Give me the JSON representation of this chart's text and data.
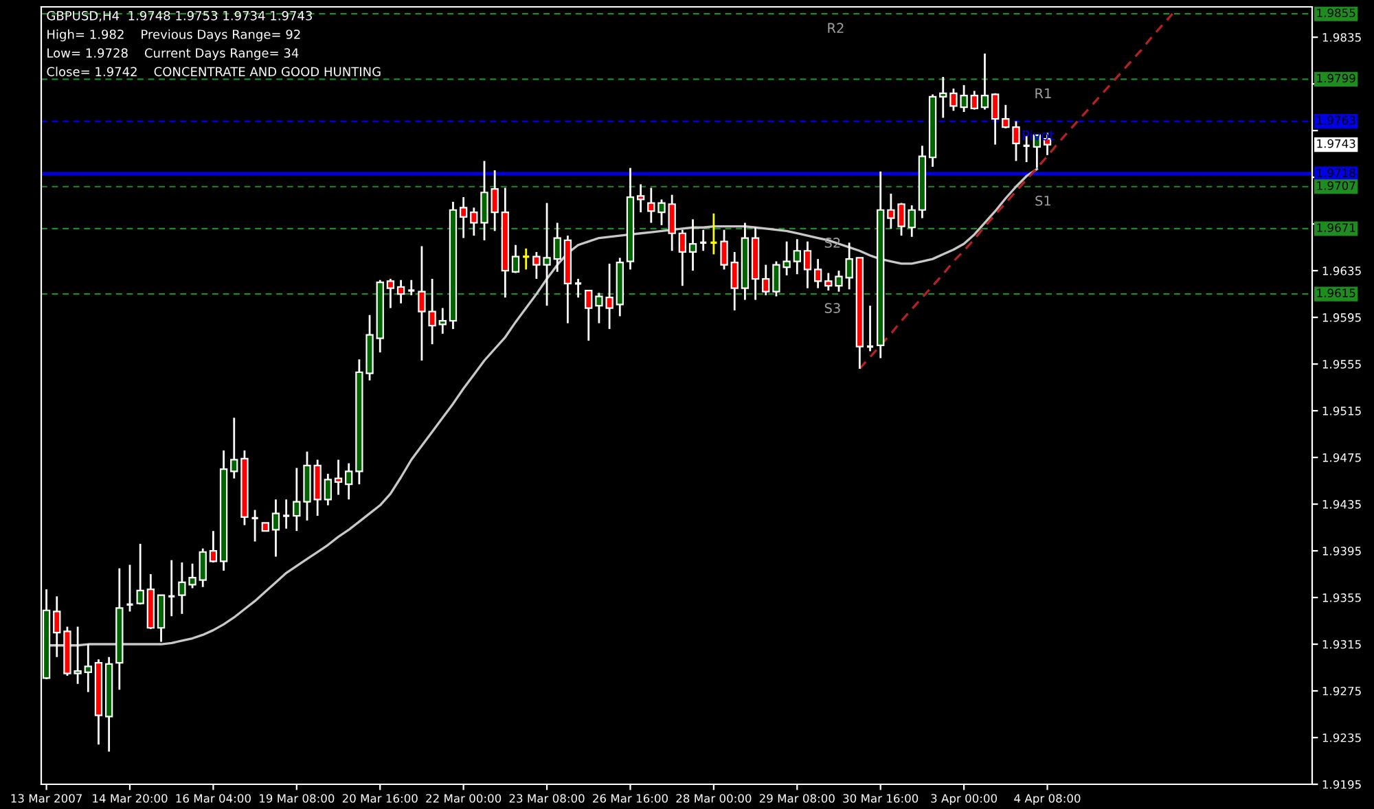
{
  "chart_data": {
    "type": "candlestick",
    "annotations": [
      "GBPUSD,H4  1.9748 1.9753 1.9734 1.9743",
      "High= 1.982    Previous Days Range= 92",
      "Low= 1.9728    Current Days Range= 34",
      "Close= 1.9742    CONCENTRATE AND GOOD HUNTING",
      {
        "text": "1.9855",
        "y": 1.9855
      },
      {
        "text": "1.9799",
        "y": 1.9799
      },
      {
        "text": "1.9763",
        "y": 1.9763
      },
      {
        "text": "1.9743",
        "y": 1.9743
      },
      {
        "text": "1.9718",
        "y": 1.9718
      },
      {
        "text": "1.9707",
        "y": 1.9707
      },
      {
        "text": "1.9671",
        "y": 1.9671
      },
      {
        "text": "1.9615",
        "y": 1.9615
      }
    ],
    "categories": [
      "13 Mar 2007",
      null,
      null,
      null,
      null,
      null,
      null,
      null,
      "14 Mar 20:00",
      null,
      null,
      null,
      null,
      null,
      null,
      null,
      "16 Mar 04:00",
      null,
      null,
      null,
      null,
      null,
      null,
      null,
      "19 Mar 08:00",
      null,
      null,
      null,
      null,
      null,
      null,
      null,
      "20 Mar 16:00",
      null,
      null,
      null,
      null,
      null,
      null,
      null,
      "22 Mar 00:00",
      null,
      null,
      null,
      null,
      null,
      null,
      null,
      "23 Mar 08:00",
      null,
      null,
      null,
      null,
      null,
      null,
      null,
      "26 Mar 16:00",
      null,
      null,
      null,
      null,
      null,
      null,
      null,
      "28 Mar 00:00",
      null,
      null,
      null,
      null,
      null,
      null,
      null,
      "29 Mar 08:00",
      null,
      null,
      null,
      null,
      null,
      null,
      null,
      "30 Mar 16:00",
      null,
      null,
      null,
      null,
      null,
      null,
      null,
      "3 Apr 00:00",
      null,
      null,
      null,
      null,
      null,
      null,
      null,
      "4 Apr 08:00",
      null,
      null,
      null,
      null,
      null,
      null,
      null,
      null,
      null,
      null,
      null,
      null,
      null,
      null,
      null,
      null,
      null,
      null,
      null,
      null,
      null,
      null,
      null,
      null,
      null
    ],
    "ylim": [
      1.9195,
      1.9861
    ],
    "yticks": [
      1.9195,
      1.9235,
      1.9275,
      1.9315,
      1.9355,
      1.9395,
      1.9435,
      1.9475,
      1.9515,
      1.9555,
      1.9595,
      1.9635,
      {
        "value": 1.9675,
        "label": null
      },
      {
        "value": 1.9715,
        "label": null
      },
      {
        "value": 1.9755,
        "label": null
      },
      {
        "value": 1.9795,
        "label": null
      },
      1.9835
    ],
    "ref_lines": [
      {
        "axis": "y",
        "value": 1.9855,
        "label": "R2",
        "color": "#1e8c1e",
        "line_style": "dashed"
      },
      {
        "axis": "y",
        "value": 1.9799,
        "label": "R1",
        "color": "#1e8c1e",
        "line_style": "dashed"
      },
      {
        "axis": "y",
        "value": 1.9763,
        "label": "Pivot",
        "color": "#0000e6",
        "line_style": "dashed"
      },
      {
        "axis": "y",
        "value": 1.9718,
        "color": "#0000e6",
        "line_style": "solid"
      },
      {
        "axis": "y",
        "value": 1.9707,
        "label": "S1",
        "color": "#1e8c1e",
        "line_style": "dashed"
      },
      {
        "axis": "y",
        "value": 1.9671,
        "label": "S2",
        "color": "#1e8c1e",
        "line_style": "dashed"
      },
      {
        "axis": "y",
        "value": 1.9615,
        "label": "S3",
        "color": "#1e8c1e",
        "line_style": "dashed"
      }
    ],
    "series": [
      {
        "type": "line",
        "color": "#c8c8c8",
        "values": [
          1.9314,
          1.9314,
          1.9314,
          1.9314,
          1.9315,
          1.9315,
          1.9315,
          1.9315,
          1.9315,
          1.9315,
          1.9315,
          1.9315,
          1.9316,
          1.9318,
          1.932,
          1.9323,
          1.9327,
          1.9332,
          1.9338,
          1.9345,
          1.9352,
          1.936,
          1.9368,
          1.9376,
          1.9382,
          1.9388,
          1.9394,
          1.94,
          1.9407,
          1.9413,
          1.942,
          1.9427,
          1.9434,
          1.9444,
          1.9458,
          1.9473,
          1.9485,
          1.9497,
          1.9509,
          1.9521,
          1.9534,
          1.9546,
          1.9558,
          1.9568,
          1.9578,
          1.9591,
          1.9603,
          1.9615,
          1.9628,
          1.964,
          1.965,
          1.9657,
          1.966,
          1.9663,
          1.9664,
          1.9665,
          1.9666,
          1.9667,
          1.9668,
          1.9669,
          1.967,
          1.9671,
          1.9672,
          1.9672,
          1.9673,
          1.9673,
          1.9673,
          1.9673,
          1.9672,
          1.9671,
          1.967,
          1.9669,
          1.9667,
          1.9665,
          1.9663,
          1.9661,
          1.9658,
          1.9655,
          1.9652,
          1.9648,
          1.9645,
          1.9643,
          1.9641,
          1.9641,
          1.9643,
          1.9645,
          1.9649,
          1.9653,
          1.9658,
          1.9666,
          1.9676,
          1.9686,
          1.9697,
          1.9707,
          1.9716,
          1.9722,
          null,
          null,
          null,
          null,
          null,
          null,
          null,
          null,
          null,
          null,
          null,
          null,
          null,
          null,
          null,
          null,
          null,
          null,
          null,
          null,
          null,
          null,
          null,
          null,
          null,
          null
        ]
      },
      {
        "type": "line",
        "color": "#b22222",
        "line_style": "dashed",
        "values": [
          null,
          null,
          null,
          null,
          null,
          null,
          null,
          null,
          null,
          null,
          null,
          null,
          null,
          null,
          null,
          null,
          null,
          null,
          null,
          null,
          null,
          null,
          null,
          null,
          null,
          null,
          null,
          null,
          null,
          null,
          null,
          null,
          null,
          null,
          null,
          null,
          null,
          null,
          null,
          null,
          null,
          null,
          null,
          null,
          null,
          null,
          null,
          null,
          null,
          null,
          null,
          null,
          null,
          null,
          null,
          null,
          null,
          null,
          null,
          null,
          null,
          null,
          null,
          null,
          null,
          null,
          null,
          null,
          null,
          null,
          null,
          null,
          null,
          null,
          null,
          null,
          null,
          null,
          1.9551,
          1.9561,
          1.9571,
          1.9581,
          1.9592,
          1.9602,
          1.9612,
          1.9622,
          1.9632,
          1.9643,
          1.9652,
          1.9662,
          1.9673,
          1.9683,
          1.9693,
          1.9703,
          1.9713,
          1.9723,
          1.9733,
          1.9744,
          1.9754,
          1.9764,
          1.9774,
          1.9784,
          1.9794,
          1.9804,
          1.9814,
          1.9824,
          1.9835,
          1.9845,
          1.9855,
          null,
          null,
          null,
          null,
          null,
          null,
          null,
          null,
          null,
          null,
          null,
          null,
          null
        ]
      },
      {
        "colors": [
          "#006400",
          "#ff0000",
          "#ff0000",
          "#006400",
          "#006400",
          "#ff0000",
          "#006400",
          "#006400",
          "#ffffff",
          "#006400",
          "#ff0000",
          "#006400",
          "#ffffff",
          "#006400",
          "#006400",
          "#006400",
          "#ff0000",
          "#006400",
          "#006400",
          "#ff0000",
          "#ffffff",
          "#ff0000",
          "#006400",
          "#ffffff",
          "#006400",
          "#006400",
          "#ff0000",
          "#006400",
          "#ff0000",
          "#006400",
          "#006400",
          "#006400",
          "#006400",
          "#ff0000",
          "#ff0000",
          "#ffffff",
          "#ff0000",
          "#ff0000",
          "#006400",
          "#006400",
          "#ff0000",
          "#ff0000",
          "#006400",
          "#ff0000",
          "#ff0000",
          "#006400",
          "#ffff00",
          "#ff0000",
          "#006400",
          "#006400",
          "#ff0000",
          "#ffffff",
          "#ff0000",
          "#006400",
          "#ff0000",
          "#006400",
          "#006400",
          "#ff0000",
          "#ff0000",
          "#006400",
          "#ff0000",
          "#ff0000",
          "#006400",
          "#ffffff",
          "#ffff00",
          "#ff0000",
          "#ff0000",
          "#006400",
          "#ff0000",
          "#ff0000",
          "#006400",
          "#006400",
          "#006400",
          "#ff0000",
          "#ff0000",
          "#ff0000",
          "#006400",
          "#006400",
          "#ff0000",
          "#ffffff",
          "#006400",
          "#ff0000",
          "#ff0000",
          "#006400",
          "#006400",
          "#006400",
          "#006400",
          "#ff0000",
          "#006400",
          "#ff0000",
          "#006400",
          "#ff0000",
          "#ff0000",
          "#ff0000",
          "#ffffff",
          "#006400",
          "#ff0000",
          null,
          null,
          null,
          null,
          null,
          null,
          null,
          null,
          null,
          null,
          null,
          null,
          null,
          null,
          null,
          null,
          null,
          null,
          null,
          null,
          null,
          null,
          null,
          null,
          null
        ],
        "ohlc": [
          [
            1.9286,
            1.9362,
            1.9285,
            1.9344
          ],
          [
            1.9343,
            1.9356,
            1.9304,
            1.9325
          ],
          [
            1.9326,
            1.933,
            1.9288,
            1.929
          ],
          [
            1.929,
            1.933,
            1.9281,
            1.9292
          ],
          [
            1.9291,
            1.9315,
            1.9274,
            1.9296
          ],
          [
            1.9299,
            1.9302,
            1.9229,
            1.9254
          ],
          [
            1.9253,
            1.9304,
            1.9223,
            1.9298
          ],
          [
            1.9299,
            1.938,
            1.9276,
            1.9346
          ],
          [
            1.9349,
            1.9383,
            1.9343,
            1.9349
          ],
          [
            1.935,
            1.9401,
            1.9349,
            1.9361
          ],
          [
            1.9362,
            1.9375,
            1.9328,
            1.9329
          ],
          [
            1.9329,
            1.9357,
            1.9317,
            1.9357
          ],
          [
            1.9356,
            1.9387,
            1.9339,
            1.9356
          ],
          [
            1.9357,
            1.9385,
            1.9341,
            1.9368
          ],
          [
            1.9366,
            1.9384,
            1.9363,
            1.9372
          ],
          [
            1.937,
            1.9397,
            1.9364,
            1.9394
          ],
          [
            1.9395,
            1.9412,
            1.9385,
            1.9386
          ],
          [
            1.9386,
            1.9481,
            1.9378,
            1.9465
          ],
          [
            1.9463,
            1.9509,
            1.9457,
            1.9473
          ],
          [
            1.9474,
            1.9481,
            1.9417,
            1.9424
          ],
          [
            1.9423,
            1.943,
            1.9403,
            1.9423
          ],
          [
            1.9419,
            1.9419,
            1.9412,
            1.9412
          ],
          [
            1.9413,
            1.9439,
            1.939,
            1.9427
          ],
          [
            1.9425,
            1.9439,
            1.9414,
            1.9425
          ],
          [
            1.9425,
            1.9466,
            1.9412,
            1.9437
          ],
          [
            1.9437,
            1.948,
            1.9421,
            1.9468
          ],
          [
            1.9468,
            1.9473,
            1.9425,
            1.9439
          ],
          [
            1.9439,
            1.9461,
            1.9434,
            1.9456
          ],
          [
            1.9457,
            1.9473,
            1.9443,
            1.9454
          ],
          [
            1.9452,
            1.947,
            1.9439,
            1.9463
          ],
          [
            1.9463,
            1.9559,
            1.9452,
            1.9548
          ],
          [
            1.9547,
            1.9597,
            1.9541,
            1.958
          ],
          [
            1.9577,
            1.9627,
            1.9565,
            1.9625
          ],
          [
            1.9626,
            1.9628,
            1.9603,
            1.962
          ],
          [
            1.9621,
            1.9627,
            1.9607,
            1.9615
          ],
          [
            1.9618,
            1.9627,
            1.9614,
            1.9618
          ],
          [
            1.9617,
            1.9656,
            1.9558,
            1.96
          ],
          [
            1.96,
            1.9628,
            1.9572,
            1.9588
          ],
          [
            1.9589,
            1.9603,
            1.9581,
            1.9592
          ],
          [
            1.9592,
            1.9694,
            1.9585,
            1.9687
          ],
          [
            1.9689,
            1.9698,
            1.9663,
            1.9681
          ],
          [
            1.9685,
            1.9689,
            1.9665,
            1.9676
          ],
          [
            1.9676,
            1.9729,
            1.9661,
            1.9702
          ],
          [
            1.9705,
            1.9721,
            1.9669,
            1.9685
          ],
          [
            1.9685,
            1.9706,
            1.9612,
            1.9635
          ],
          [
            1.9634,
            1.9657,
            1.9633,
            1.9647
          ],
          [
            1.9647,
            1.9654,
            1.9636,
            1.9647
          ],
          [
            1.9647,
            1.9651,
            1.9628,
            1.964
          ],
          [
            1.964,
            1.9693,
            1.9605,
            1.9646
          ],
          [
            1.9645,
            1.9676,
            1.9634,
            1.9663
          ],
          [
            1.9661,
            1.9665,
            1.959,
            1.9624
          ],
          [
            1.9624,
            1.9628,
            1.9612,
            1.9624
          ],
          [
            1.9618,
            1.9618,
            1.9575,
            1.9603
          ],
          [
            1.9605,
            1.9616,
            1.959,
            1.9613
          ],
          [
            1.9612,
            1.9641,
            1.9585,
            1.9603
          ],
          [
            1.9606,
            1.9646,
            1.9596,
            1.9642
          ],
          [
            1.9643,
            1.9723,
            1.9636,
            1.9698
          ],
          [
            1.9699,
            1.9709,
            1.9685,
            1.9696
          ],
          [
            1.9693,
            1.9706,
            1.9676,
            1.9686
          ],
          [
            1.9685,
            1.9696,
            1.9674,
            1.9693
          ],
          [
            1.9692,
            1.97,
            1.9652,
            1.9667
          ],
          [
            1.9667,
            1.967,
            1.9622,
            1.9651
          ],
          [
            1.9651,
            1.9679,
            1.9635,
            1.9658
          ],
          [
            1.9659,
            1.967,
            1.9652,
            1.9659
          ],
          [
            1.9659,
            1.9684,
            1.9649,
            1.9659
          ],
          [
            1.966,
            1.967,
            1.9636,
            1.964
          ],
          [
            1.9642,
            1.9651,
            1.9601,
            1.962
          ],
          [
            1.962,
            1.9676,
            1.961,
            1.9663
          ],
          [
            1.9663,
            1.9672,
            1.961,
            1.9628
          ],
          [
            1.9628,
            1.964,
            1.9614,
            1.9617
          ],
          [
            1.9617,
            1.9643,
            1.9613,
            1.964
          ],
          [
            1.9638,
            1.966,
            1.9631,
            1.9643
          ],
          [
            1.9643,
            1.9662,
            1.9632,
            1.9652
          ],
          [
            1.9652,
            1.966,
            1.962,
            1.9636
          ],
          [
            1.9636,
            1.9645,
            1.962,
            1.9626
          ],
          [
            1.9626,
            1.9633,
            1.9618,
            1.9622
          ],
          [
            1.9622,
            1.9635,
            1.9617,
            1.963
          ],
          [
            1.9629,
            1.9659,
            1.9619,
            1.9645
          ],
          [
            1.9646,
            1.9646,
            1.9551,
            1.957
          ],
          [
            1.957,
            1.9605,
            1.9566,
            1.957
          ],
          [
            1.9571,
            1.972,
            1.956,
            1.9687
          ],
          [
            1.9687,
            1.9701,
            1.9671,
            1.968
          ],
          [
            1.9692,
            1.9693,
            1.9665,
            1.9673
          ],
          [
            1.9672,
            1.9691,
            1.9664,
            1.9687
          ],
          [
            1.9687,
            1.9742,
            1.968,
            1.9733
          ],
          [
            1.9732,
            1.9786,
            1.9724,
            1.9784
          ],
          [
            1.9784,
            1.9801,
            1.9766,
            1.9787
          ],
          [
            1.9787,
            1.9791,
            1.9772,
            1.9776
          ],
          [
            1.9775,
            1.9794,
            1.9771,
            1.9785
          ],
          [
            1.9785,
            1.9789,
            1.9773,
            1.9774
          ],
          [
            1.9775,
            1.9821,
            1.9773,
            1.9785
          ],
          [
            1.9786,
            1.9787,
            1.9743,
            1.9765
          ],
          [
            1.9765,
            1.9777,
            1.9757,
            1.9758
          ],
          [
            1.9758,
            1.9763,
            1.9729,
            1.9744
          ],
          [
            1.9742,
            1.9751,
            1.9728,
            1.9742
          ],
          [
            1.9741,
            1.9751,
            1.9723,
            1.9751
          ],
          [
            1.9748,
            1.9753,
            1.9734,
            1.9743
          ],
          null,
          null,
          null,
          null,
          null,
          null,
          null,
          null,
          null,
          null,
          null,
          null,
          null,
          null,
          null,
          null,
          null,
          null,
          null,
          null,
          null,
          null,
          null,
          null,
          null
        ]
      }
    ]
  }
}
